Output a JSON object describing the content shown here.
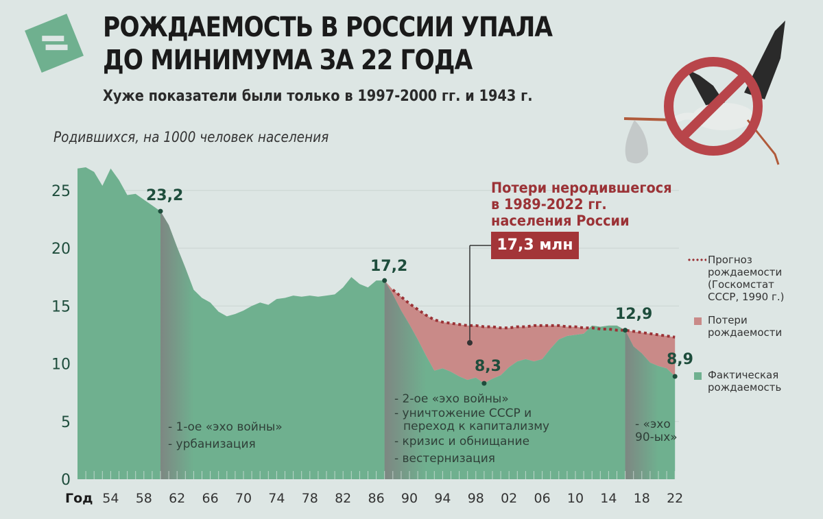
{
  "header": {
    "title_line1": "РОЖДАЕМОСТЬ В РОССИИ УПАЛА",
    "title_line2": "ДО МИНИМУМА ЗА 22 ГОДА",
    "subtitle": "Хуже показатели были только в 1997-2000 гг. и 1943 г.",
    "logo_icon": "equals-icon",
    "illustration_icon": "stork-prohibited-icon"
  },
  "colors": {
    "actual": "#6fb08f",
    "loss": "#c98a88",
    "forecast": "#9b3236",
    "highlight_band": "#808080",
    "background": "#dde6e4",
    "label_dark_green": "#1e4d3c"
  },
  "loss_callout": {
    "title_line1": "Потери неродившегося",
    "title_line2": "в 1989-2022 гг.",
    "title_line3": "населения России",
    "value": "17,3 млн"
  },
  "legend": {
    "forecast_line1": "Прогноз",
    "forecast_line2": "рождаемости",
    "forecast_line3": "(Госкомстат",
    "forecast_line4": "СССР, 1990 г.)",
    "loss_line1": "Потери",
    "loss_line2": "рождаемости",
    "actual_line1": "Фактическая",
    "actual_line2": "рождаемость"
  },
  "annotations": {
    "p1960": "23,2",
    "p1987": "17,2",
    "p1999": "8,3",
    "p2016": "12,9",
    "p2022": "8,9",
    "band1_line1": "- 1-ое «эхо войны»",
    "band1_line2": "- урбанизация",
    "band2_line1": "- 2-ое «эхо войны»",
    "band2_line2": "- уничтожение СССР и",
    "band2_line3": "  переход к капитализму",
    "band2_line4": "- кризис и обнищание",
    "band2_line5": "- вестернизация",
    "band3_line1": "- «эхо",
    "band3_line2": "90-ых»"
  },
  "axis": {
    "ylabel": "Родившихся, на 1000 человек населения",
    "xlabel": "Год",
    "yticks": [
      "0",
      "5",
      "10",
      "15",
      "20",
      "25"
    ],
    "xticks": [
      "54",
      "58",
      "62",
      "66",
      "70",
      "74",
      "78",
      "82",
      "86",
      "90",
      "94",
      "98",
      "02",
      "06",
      "10",
      "14",
      "18",
      "22"
    ]
  },
  "chart_data": {
    "type": "area",
    "title": "Рождаемость в России упала до минимума за 22 года",
    "subtitle": "Хуже показатели были только в 1997-2000 гг. и 1943 г.",
    "xlabel": "Год",
    "ylabel": "Родившихся, на 1000 человек населения",
    "ylim": [
      0,
      27
    ],
    "xlim": [
      1950,
      2022
    ],
    "grid": true,
    "legend_position": "right",
    "x": [
      1950,
      1951,
      1952,
      1953,
      1954,
      1955,
      1956,
      1957,
      1958,
      1959,
      1960,
      1961,
      1962,
      1963,
      1964,
      1965,
      1966,
      1967,
      1968,
      1969,
      1970,
      1971,
      1972,
      1973,
      1974,
      1975,
      1976,
      1977,
      1978,
      1979,
      1980,
      1981,
      1982,
      1983,
      1984,
      1985,
      1986,
      1987,
      1988,
      1989,
      1990,
      1991,
      1992,
      1993,
      1994,
      1995,
      1996,
      1997,
      1998,
      1999,
      2000,
      2001,
      2002,
      2003,
      2004,
      2005,
      2006,
      2007,
      2008,
      2009,
      2010,
      2011,
      2012,
      2013,
      2014,
      2015,
      2016,
      2017,
      2018,
      2019,
      2020,
      2021,
      2022
    ],
    "series": [
      {
        "name": "Фактическая рождаемость",
        "values": [
          26.9,
          27.0,
          26.6,
          25.4,
          26.9,
          25.9,
          24.6,
          24.7,
          24.2,
          23.7,
          23.2,
          22.0,
          20.1,
          18.3,
          16.4,
          15.7,
          15.3,
          14.5,
          14.1,
          14.3,
          14.6,
          15.0,
          15.3,
          15.1,
          15.6,
          15.7,
          15.9,
          15.8,
          15.9,
          15.8,
          15.9,
          16.0,
          16.6,
          17.5,
          16.9,
          16.6,
          17.2,
          17.2,
          16.0,
          14.6,
          13.4,
          12.1,
          10.7,
          9.4,
          9.6,
          9.3,
          8.9,
          8.6,
          8.8,
          8.3,
          8.7,
          9.0,
          9.7,
          10.2,
          10.4,
          10.2,
          10.4,
          11.3,
          12.1,
          12.4,
          12.5,
          12.6,
          13.3,
          13.2,
          13.3,
          13.3,
          12.9,
          11.5,
          10.9,
          10.1,
          9.8,
          9.6,
          8.9
        ]
      },
      {
        "name": "Прогноз рождаемости (Госкомстат СССР, 1990 г.)",
        "x": [
          1987,
          1988,
          1989,
          1990,
          1991,
          1992,
          1993,
          1994,
          1995,
          1996,
          1997,
          1998,
          1999,
          2000,
          2001,
          2002,
          2003,
          2004,
          2005,
          2006,
          2007,
          2008,
          2009,
          2010,
          2011,
          2012,
          2013,
          2014,
          2015,
          2016,
          2017,
          2018,
          2019,
          2020,
          2021,
          2022
        ],
        "values": [
          17.2,
          16.4,
          15.8,
          15.2,
          14.7,
          14.2,
          13.8,
          13.6,
          13.5,
          13.4,
          13.3,
          13.3,
          13.2,
          13.2,
          13.1,
          13.1,
          13.2,
          13.2,
          13.3,
          13.3,
          13.3,
          13.3,
          13.2,
          13.2,
          13.1,
          13.1,
          13.0,
          13.0,
          12.9,
          12.9,
          12.8,
          12.7,
          12.6,
          12.5,
          12.4,
          12.3
        ]
      }
    ],
    "highlight_bands": [
      [
        1960,
        1962
      ],
      [
        1987,
        1990
      ],
      [
        2016,
        2018
      ]
    ],
    "annotations": [
      {
        "x": 1960,
        "y": 23.2,
        "text": "23,2"
      },
      {
        "x": 1987,
        "y": 17.2,
        "text": "17,2"
      },
      {
        "x": 1999,
        "y": 8.3,
        "text": "8,3"
      },
      {
        "x": 2016,
        "y": 12.9,
        "text": "12,9"
      },
      {
        "x": 2022,
        "y": 8.9,
        "text": "8,9"
      }
    ],
    "callout": "Потери неродившегося в 1989-2022 гг. населения России: 17,3 млн"
  }
}
